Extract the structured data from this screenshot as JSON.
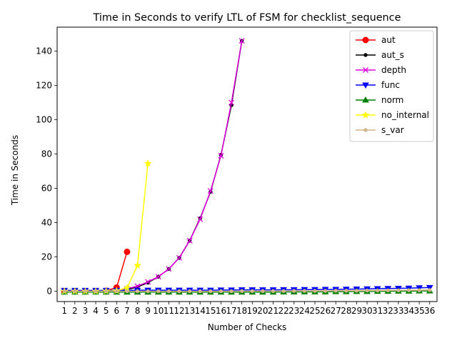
{
  "chart_data": {
    "type": "line",
    "title": "Time in Seconds to verify LTL of FSM for checklist_sequence",
    "xlabel": "Number of Checks",
    "ylabel": "Time in Seconds",
    "x": [
      1,
      2,
      3,
      4,
      5,
      6,
      7,
      8,
      9,
      10,
      11,
      12,
      13,
      14,
      15,
      16,
      17,
      18,
      19,
      20,
      21,
      22,
      23,
      24,
      25,
      26,
      27,
      28,
      29,
      30,
      31,
      32,
      33,
      34,
      35,
      36
    ],
    "ylim": [
      -6,
      154
    ],
    "yticks": [
      0,
      20,
      40,
      60,
      80,
      100,
      120,
      140
    ],
    "legend_position": "top-right",
    "series": [
      {
        "name": "aut",
        "color": "#ff0000",
        "marker": "circle",
        "x": [
          1,
          2,
          3,
          4,
          5,
          6,
          7
        ],
        "values": [
          0.0,
          0.0,
          0.0,
          0.1,
          0.3,
          2.2,
          23.0
        ]
      },
      {
        "name": "aut_s",
        "color": "#000000",
        "marker": "dot",
        "x": [
          1,
          2,
          3,
          4,
          5,
          6,
          7,
          8,
          9,
          10,
          11,
          12,
          13,
          14,
          15,
          16,
          17,
          18
        ],
        "values": [
          0.0,
          0.0,
          0.0,
          0.0,
          0.1,
          0.2,
          1.0,
          2.5,
          5.0,
          8.5,
          13.0,
          19.5,
          29.5,
          42.5,
          58.0,
          79.5,
          108.5,
          146.0
        ]
      },
      {
        "name": "depth",
        "color": "#dd00dd",
        "marker": "x",
        "x": [
          1,
          2,
          3,
          4,
          5,
          6,
          7,
          8,
          9,
          10,
          11,
          12,
          13,
          14,
          15,
          16,
          17,
          18
        ],
        "values": [
          0.0,
          0.0,
          0.0,
          0.0,
          0.1,
          0.3,
          1.5,
          3.0,
          5.5,
          8.5,
          13.0,
          19.5,
          29.5,
          42.0,
          58.5,
          79.0,
          110.0,
          146.0
        ]
      },
      {
        "name": "func",
        "color": "#0000ff",
        "marker": "triangle-down",
        "x": [
          1,
          2,
          3,
          4,
          5,
          6,
          7,
          8,
          9,
          10,
          11,
          12,
          13,
          14,
          15,
          16,
          17,
          18,
          19,
          20,
          21,
          22,
          23,
          24,
          25,
          26,
          27,
          28,
          29,
          30,
          31,
          32,
          33,
          34,
          35,
          36
        ],
        "values": [
          0.5,
          0.5,
          0.5,
          0.5,
          0.5,
          0.5,
          0.5,
          0.6,
          0.6,
          0.6,
          0.6,
          0.6,
          0.6,
          0.6,
          0.6,
          0.7,
          0.7,
          0.8,
          0.8,
          0.8,
          0.8,
          0.9,
          0.9,
          1.0,
          1.0,
          1.1,
          1.1,
          1.2,
          1.3,
          1.4,
          1.5,
          1.6,
          1.7,
          1.8,
          2.0,
          2.2
        ]
      },
      {
        "name": "norm",
        "color": "#008000",
        "marker": "triangle-up",
        "x": [
          1,
          2,
          3,
          4,
          5,
          6,
          7,
          8,
          9,
          10,
          11,
          12,
          13,
          14,
          15,
          16,
          17,
          18,
          19,
          20,
          21,
          22,
          23,
          24,
          25,
          26,
          27,
          28,
          29,
          30,
          31,
          32,
          33,
          34,
          35,
          36
        ],
        "values": [
          -0.5,
          -0.5,
          -0.5,
          -0.5,
          -0.5,
          -0.5,
          -0.5,
          -0.5,
          -0.5,
          -0.5,
          -0.5,
          -0.5,
          -0.5,
          -0.5,
          -0.5,
          -0.5,
          -0.5,
          -0.5,
          -0.5,
          -0.5,
          -0.5,
          -0.4,
          -0.4,
          -0.3,
          -0.3,
          -0.3,
          -0.2,
          -0.2,
          -0.1,
          -0.1,
          0.0,
          0.0,
          0.1,
          0.1,
          0.2,
          0.2
        ]
      },
      {
        "name": "no_internal",
        "color": "#ffff00",
        "marker": "star",
        "x": [
          1,
          2,
          3,
          4,
          5,
          6,
          7,
          8,
          9
        ],
        "values": [
          0.0,
          0.0,
          0.0,
          0.0,
          0.1,
          0.3,
          2.0,
          15.0,
          74.5
        ]
      },
      {
        "name": "s_var",
        "color": "#d2b48c",
        "marker": "dot",
        "x": [
          1,
          2,
          3,
          4,
          5,
          6,
          7,
          8,
          9,
          10,
          11,
          12,
          13,
          14,
          15,
          16,
          17,
          18,
          19,
          20,
          21,
          22,
          23,
          24,
          25,
          26,
          27,
          28,
          29,
          30,
          31,
          32,
          33,
          34,
          35,
          36
        ],
        "values": [
          0.0,
          0.0,
          0.0,
          0.0,
          0.0,
          0.0,
          0.0,
          0.0,
          0.0,
          0.0,
          0.0,
          0.0,
          0.0,
          0.0,
          0.0,
          0.0,
          0.0,
          0.1,
          0.1,
          0.1,
          0.1,
          0.1,
          0.2,
          0.2,
          0.2,
          0.2,
          0.3,
          0.3,
          0.3,
          0.4,
          0.4,
          0.5,
          0.5,
          0.6,
          0.6,
          0.7
        ]
      }
    ]
  }
}
